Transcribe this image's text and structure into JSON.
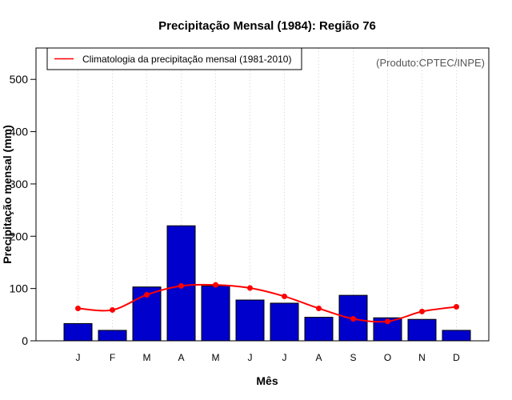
{
  "chart_data": {
    "type": "bar",
    "title": "Precipitação Mensal (1984): Região 76",
    "xlabel": "Mês",
    "ylabel": "Precipitação mensal (mm)",
    "ylim": [
      0,
      560
    ],
    "yticks": [
      0,
      100,
      200,
      300,
      400,
      500
    ],
    "grid": "vertical dotted",
    "categories": [
      "J",
      "F",
      "M",
      "A",
      "M",
      "J",
      "J",
      "A",
      "S",
      "O",
      "N",
      "D"
    ],
    "series": [
      {
        "name": "Precipitação mensal 1984",
        "kind": "bar",
        "color": "#0000cc",
        "values": [
          33,
          20,
          103,
          220,
          105,
          78,
          72,
          45,
          87,
          44,
          41,
          20
        ]
      },
      {
        "name": "Climatologia da precipitação mensal (1981-2010)",
        "kind": "line",
        "color": "#ff0000",
        "values": [
          62,
          59,
          88,
          105,
          107,
          101,
          85,
          62,
          42,
          37,
          56,
          65
        ]
      }
    ],
    "legend": {
      "position": "top-left",
      "entries": [
        "Climatologia da precipitação mensal (1981-2010)"
      ]
    },
    "annotation": "(Produto:CPTEC/INPE)"
  }
}
